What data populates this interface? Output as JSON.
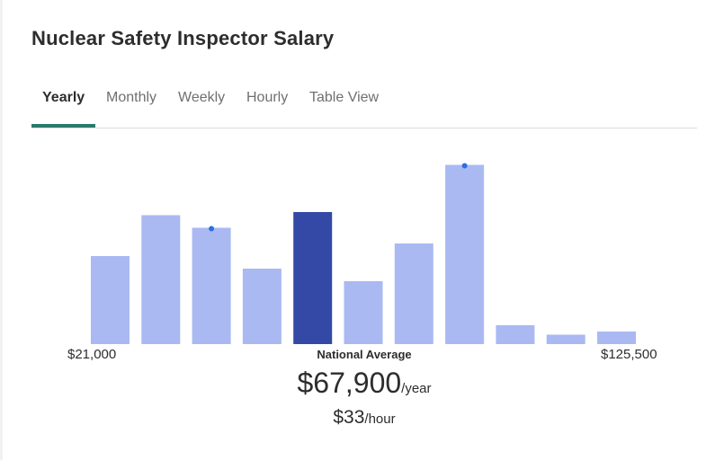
{
  "page": {
    "title": "Nuclear Safety Inspector Salary"
  },
  "tabs": [
    {
      "label": "Yearly",
      "active": true
    },
    {
      "label": "Monthly",
      "active": false
    },
    {
      "label": "Weekly",
      "active": false
    },
    {
      "label": "Hourly",
      "active": false
    },
    {
      "label": "Table View",
      "active": false
    }
  ],
  "colors": {
    "bar": "#aab9f2",
    "bar_highlight": "#3449a6",
    "marker": "#2f6de0",
    "tab_underline": "#2a7a6a"
  },
  "chart_data": {
    "type": "bar",
    "title": "",
    "xlabel": "",
    "ylabel": "",
    "x_range": {
      "min_label": "$21,000",
      "max_label": "$125,500"
    },
    "values": [
      14,
      20.5,
      18.5,
      12,
      21,
      10,
      16,
      28.5,
      3,
      1.5,
      2
    ],
    "highlight_index": 4,
    "marker_indices": [
      2,
      7
    ],
    "ylim": [
      0,
      30
    ],
    "grid": false,
    "legend": "none"
  },
  "summary": {
    "label": "National Average",
    "yearly_value": "$67,900",
    "yearly_unit": "/year",
    "hourly_value": "$33",
    "hourly_unit": "/hour"
  }
}
